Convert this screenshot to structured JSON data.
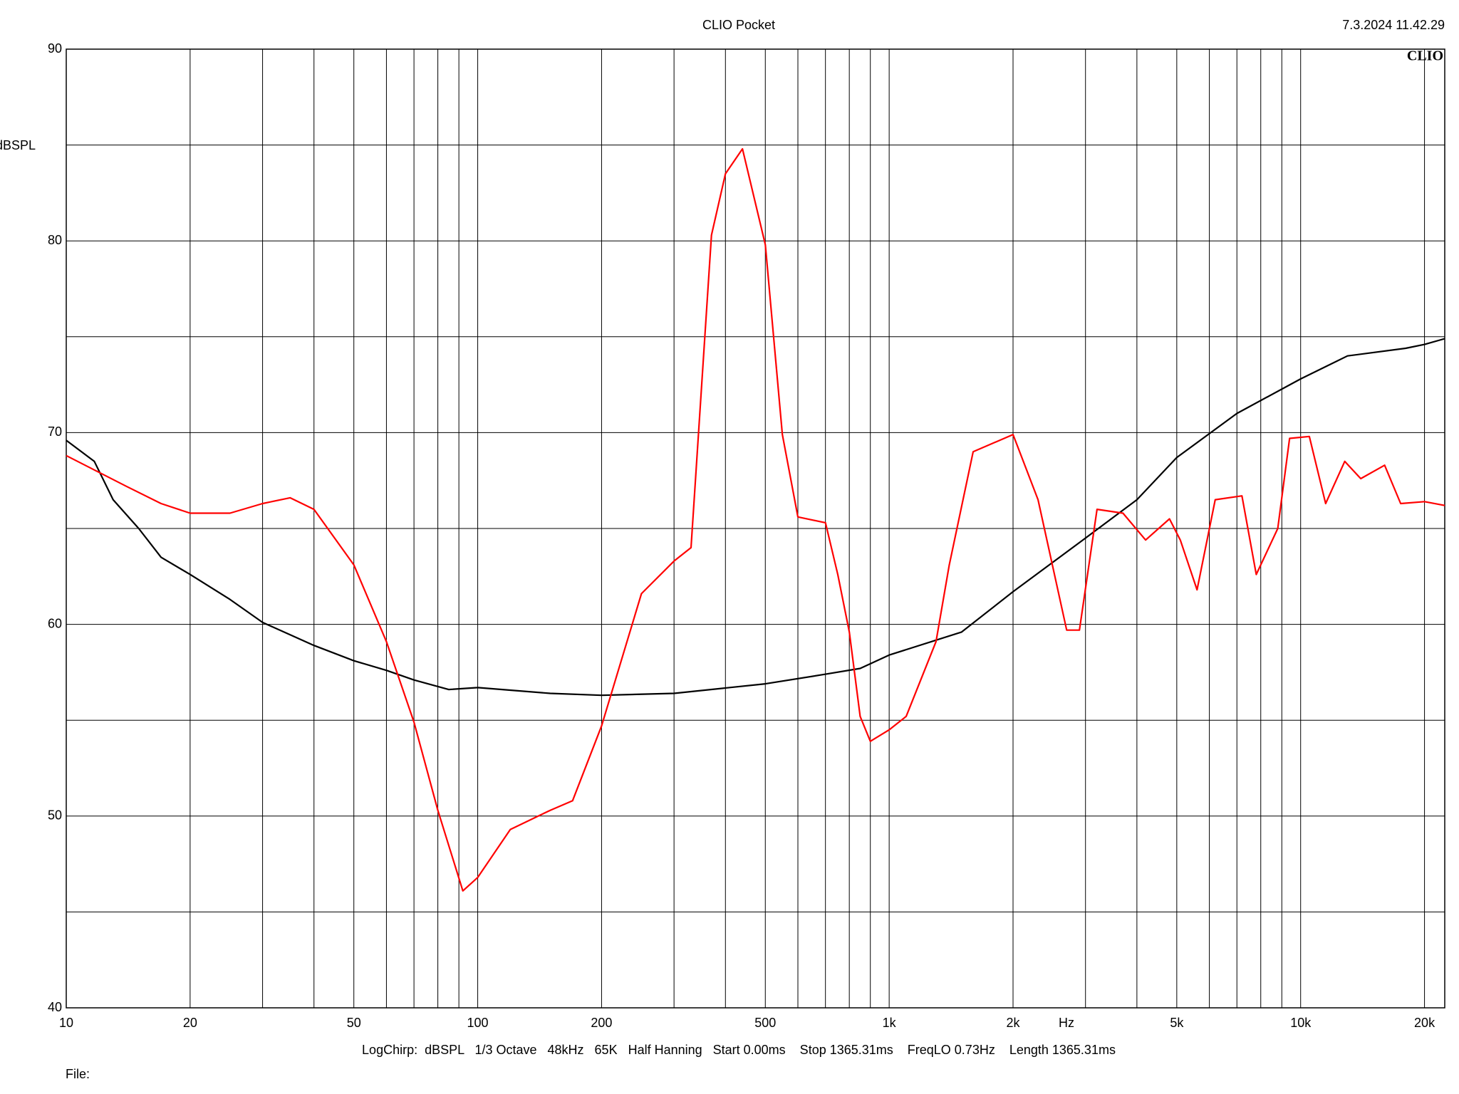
{
  "chart_data": {
    "type": "line",
    "title": "CLIO Pocket",
    "timestamp": "7.3.2024 11.42.29",
    "logo": "CLIO",
    "y_label": "dBSPL",
    "x_label": "Hz",
    "footer": "LogChirp:  dBSPL   1/3 Octave   48kHz   65K   Half Hanning   Start 0.00ms    Stop 1365.31ms    FreqLO 0.73Hz    Length 1365.31ms",
    "file_label": "File:",
    "x_log": true,
    "grid": true,
    "xlim": [
      10,
      22400
    ],
    "ylim": [
      40,
      90
    ],
    "xticks": [
      10,
      20,
      50,
      100,
      200,
      500,
      {
        "value": 1000,
        "label": "1k"
      },
      {
        "value": 2000,
        "label": "2k"
      },
      {
        "value": 5000,
        "label": "5k"
      },
      {
        "value": 10000,
        "label": "10k"
      },
      {
        "value": 20000,
        "label": "20k"
      }
    ],
    "xminor": [
      30,
      40,
      60,
      70,
      80,
      90,
      300,
      400,
      600,
      700,
      800,
      900,
      3000,
      4000,
      6000,
      7000,
      8000,
      9000
    ],
    "yticks": [
      40,
      50,
      60,
      70,
      80,
      90
    ],
    "yminor": [
      45,
      55,
      65,
      75,
      85
    ],
    "series": [
      {
        "color": "#000000",
        "x": [
          10,
          11.7,
          13,
          15,
          17,
          20,
          25,
          30,
          40,
          50,
          60,
          70,
          85,
          100,
          150,
          200,
          300,
          500,
          700,
          850,
          1000,
          1500,
          2000,
          3000,
          4000,
          5000,
          7000,
          10000,
          13000,
          18000,
          20000,
          22400
        ],
        "values": [
          69.6,
          68.5,
          66.5,
          65.0,
          63.5,
          62.6,
          61.3,
          60.1,
          58.9,
          58.1,
          57.6,
          57.1,
          56.6,
          56.7,
          56.4,
          56.3,
          56.4,
          56.9,
          57.4,
          57.7,
          58.4,
          59.6,
          61.7,
          64.5,
          66.5,
          68.7,
          71.0,
          72.8,
          74.0,
          74.4,
          74.6,
          74.9
        ]
      },
      {
        "color": "#ff0000",
        "x": [
          10,
          14,
          17,
          20,
          25,
          30,
          35,
          40,
          50,
          60,
          70,
          80,
          92,
          100,
          120,
          150,
          170,
          200,
          250,
          300,
          330,
          370,
          400,
          440,
          500,
          550,
          600,
          700,
          750,
          800,
          850,
          900,
          1000,
          1100,
          1300,
          1400,
          1600,
          2000,
          2300,
          2700,
          2900,
          3200,
          3700,
          4200,
          4800,
          5100,
          5600,
          6200,
          7200,
          7800,
          8800,
          9400,
          10500,
          11500,
          12800,
          14000,
          16000,
          17500,
          20000,
          22400
        ],
        "values": [
          68.8,
          67.2,
          66.3,
          65.8,
          65.8,
          66.3,
          66.6,
          66.0,
          63.1,
          59.1,
          54.9,
          50.3,
          46.1,
          46.8,
          49.3,
          50.3,
          50.8,
          54.7,
          61.6,
          63.3,
          64.0,
          80.3,
          83.5,
          84.8,
          79.8,
          69.9,
          65.6,
          65.3,
          62.6,
          59.6,
          55.2,
          53.9,
          54.5,
          55.2,
          59.1,
          63.1,
          69.0,
          69.9,
          66.5,
          59.7,
          59.7,
          66.0,
          65.8,
          64.4,
          65.5,
          64.4,
          61.8,
          66.5,
          66.7,
          62.6,
          65.0,
          69.7,
          69.8,
          66.3,
          68.5,
          67.6,
          68.3,
          66.3,
          66.4,
          66.2
        ]
      }
    ]
  }
}
